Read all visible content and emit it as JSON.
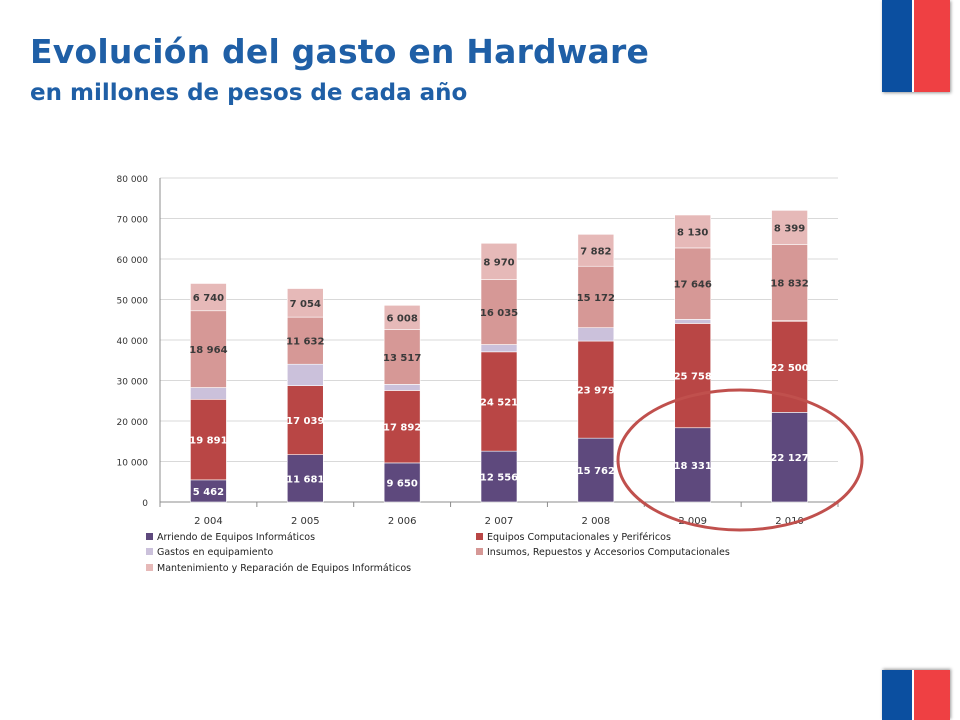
{
  "header": {
    "title": "Evolución del gasto en Hardware",
    "subtitle": "en millones de pesos de cada año"
  },
  "colors": {
    "title": "#1f5fa6",
    "flag_blue": "#0b4fa0",
    "flag_red": "#ef4043",
    "highlight_circle": "#c0504d"
  },
  "chart_data": {
    "type": "bar",
    "stacked": true,
    "categories": [
      "2 004",
      "2 005",
      "2 006",
      "2 007",
      "2 008",
      "2 009",
      "2 010"
    ],
    "ylim": [
      0,
      80000
    ],
    "yticks": [
      "0",
      "10 000",
      "20 000",
      "30 000",
      "40 000",
      "50 000",
      "60 000",
      "70 000",
      "80 000"
    ],
    "ytick_values": [
      0,
      10000,
      20000,
      30000,
      40000,
      50000,
      60000,
      70000,
      80000
    ],
    "grid": true,
    "legend_position": "bottom",
    "series": [
      {
        "name": "Arriendo de Equipos Informáticos",
        "color": "#5e497d",
        "values": [
          5462,
          11681,
          9650,
          12556,
          15762,
          18331,
          22127
        ],
        "labels": [
          "5 462",
          "11 681",
          "9 650",
          "12 556",
          "15 762",
          "18 331",
          "22 127"
        ]
      },
      {
        "name": "Equipos Computacionales y Periféricos",
        "color": "#b94645",
        "values": [
          19891,
          17039,
          17892,
          24521,
          23979,
          25758,
          22500
        ],
        "labels": [
          "19 891",
          "17 039",
          "17 892",
          "24 521",
          "23 979",
          "25 758",
          "22 500"
        ]
      },
      {
        "name": "Gastos en equipamiento",
        "color": "#cbc1db",
        "values": [
          2900,
          5300,
          1500,
          1800,
          3300,
          1000,
          150
        ],
        "labels": [
          "",
          "",
          "",
          "",
          "",
          "",
          ""
        ]
      },
      {
        "name": "Insumos, Repuestos y Accesorios Computacionales",
        "color": "#d69896",
        "values": [
          18964,
          11632,
          13517,
          16035,
          15172,
          17646,
          18832
        ],
        "labels": [
          "18 964",
          "11 632",
          "13 517",
          "16 035",
          "15 172",
          "17 646",
          "18 832"
        ]
      },
      {
        "name": "Mantenimiento y Reparación de Equipos Informáticos",
        "color": "#e6b9b8",
        "values": [
          6740,
          7054,
          6008,
          8970,
          7882,
          8130,
          8399
        ],
        "labels": [
          "6 740",
          "7 054",
          "6 008",
          "8 970",
          "7 882",
          "8 130",
          "8 399"
        ]
      }
    ]
  }
}
